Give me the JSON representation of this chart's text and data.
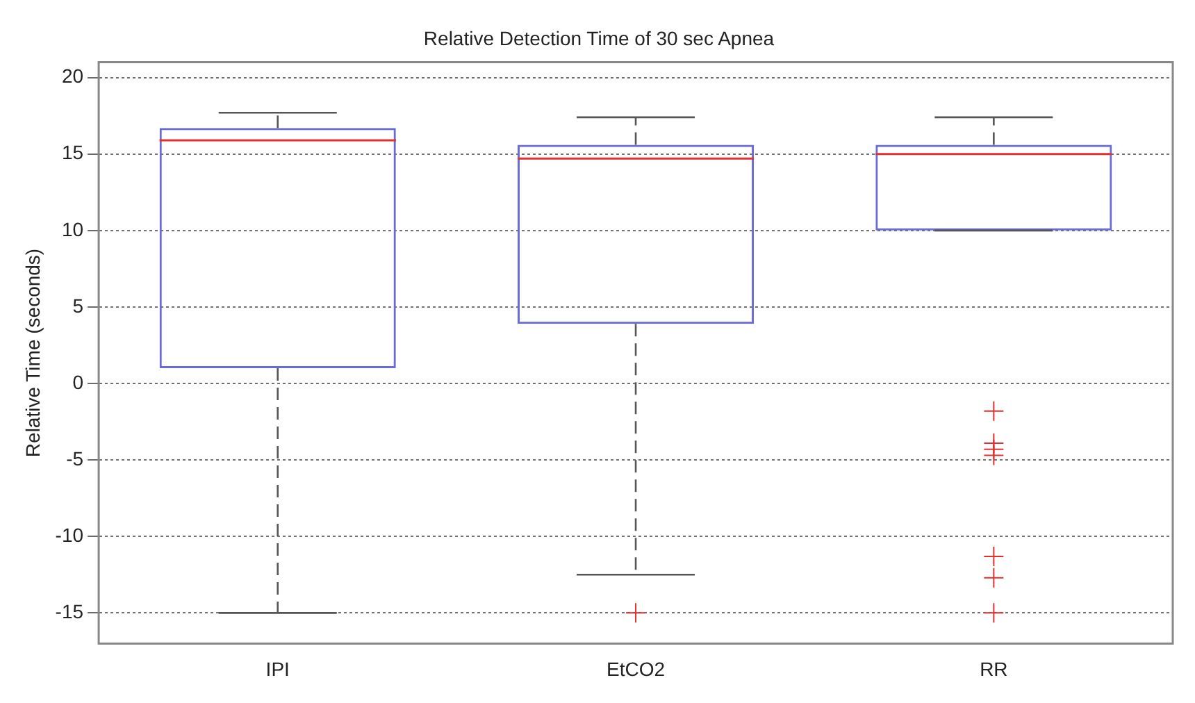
{
  "chart_data": {
    "type": "box",
    "title": "Relative Detection Time of 30 sec Apnea",
    "ylabel": "Relative Time (seconds)",
    "categories": [
      "IPI",
      "EtCO2",
      "RR"
    ],
    "boxes": [
      {
        "low": -15,
        "q1": 1.0,
        "median": 15.9,
        "q3": 16.7,
        "high": 17.7
      },
      {
        "low": -12.5,
        "q1": 3.9,
        "median": 14.7,
        "q3": 15.6,
        "high": 17.4,
        "outliers": [
          -15
        ]
      },
      {
        "low": 10,
        "q1": 10,
        "median": 15.0,
        "q3": 15.6,
        "high": 17.4,
        "outliers": [
          -1.8,
          -3.9,
          -4.3,
          -4.7,
          -11.3,
          -12.7,
          -15
        ]
      }
    ],
    "color": "#6a6ad8",
    "ylim": [
      -17,
      21
    ],
    "yticks": [
      -15,
      -10,
      -5,
      0,
      5,
      10,
      15,
      20
    ],
    "grid": "y",
    "marker": "cross"
  }
}
